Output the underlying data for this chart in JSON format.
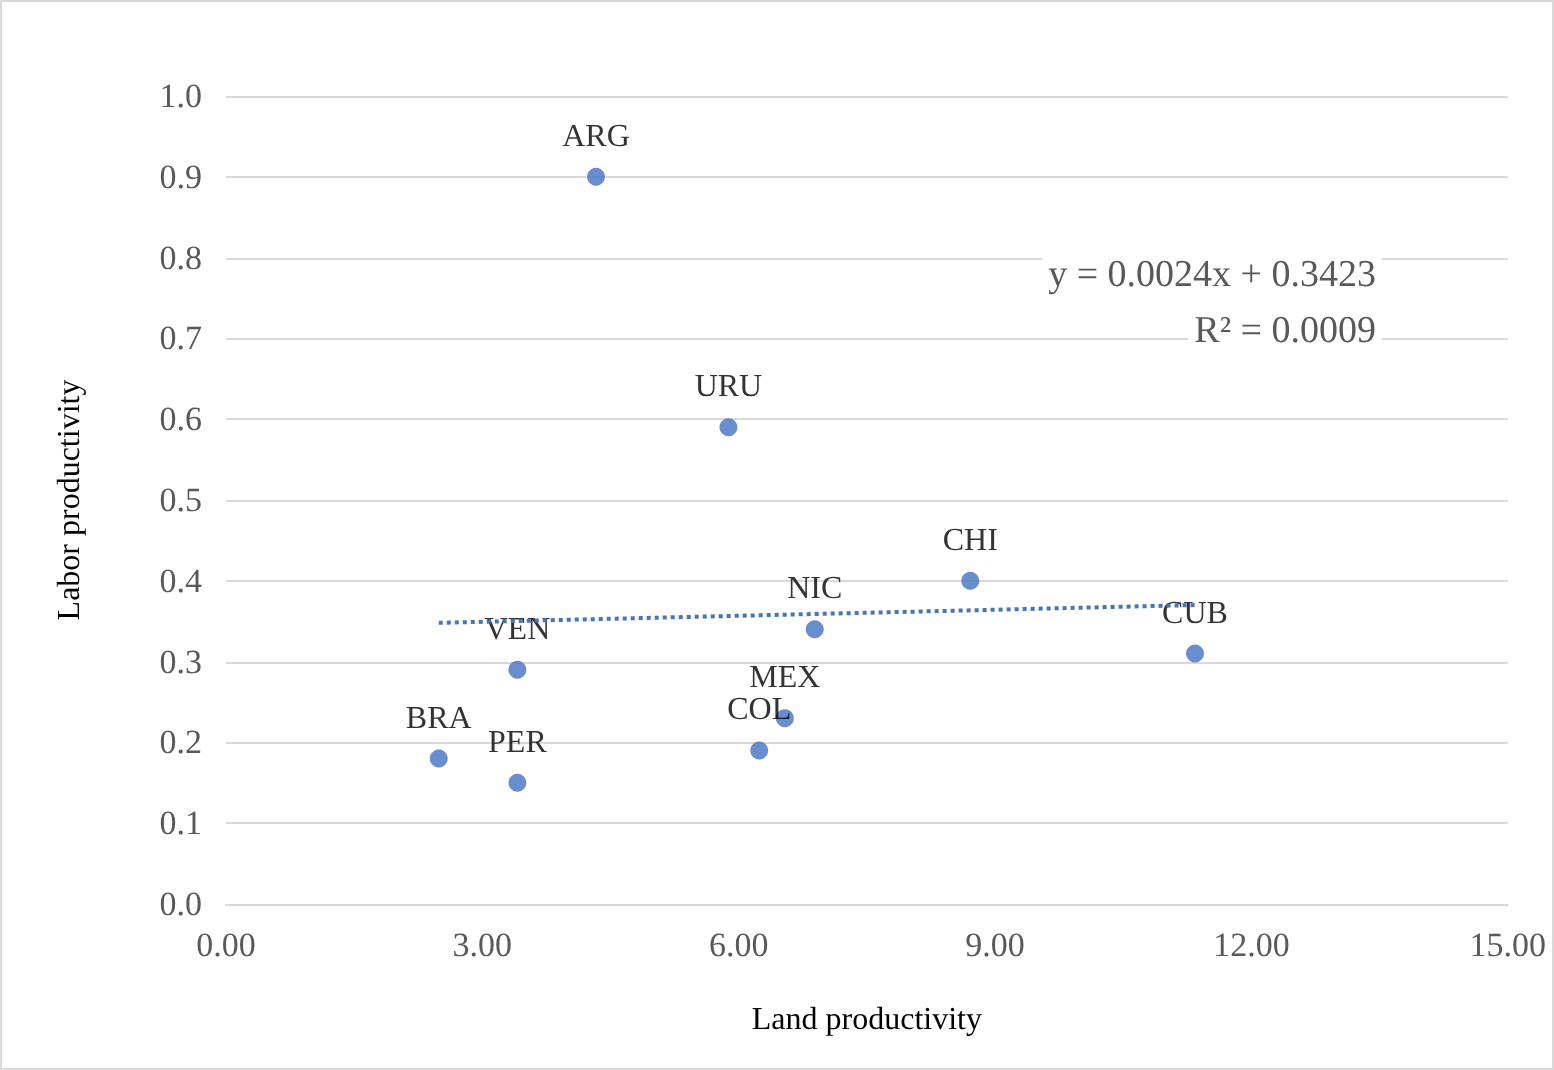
{
  "chart_data": {
    "type": "scatter",
    "xlabel": "Land productivity",
    "ylabel": "Labor productivity",
    "x": [
      4.33,
      5.88,
      8.71,
      6.89,
      11.34,
      3.41,
      6.54,
      6.24,
      2.49,
      3.41
    ],
    "series": [
      {
        "color": "#4472c4",
        "values": [
          0.9,
          0.59,
          0.4,
          0.34,
          0.31,
          0.29,
          0.23,
          0.19,
          0.18,
          0.15
        ]
      },
      {
        "type": "line",
        "color": "#4472c4",
        "line_style": "dotted",
        "marker": "none",
        "x": [
          2.49,
          11.34
        ],
        "values": [
          0.348,
          0.37
        ]
      }
    ],
    "marker": "circle",
    "xlim": [
      0,
      15
    ],
    "xticks": [
      {
        "value": 0,
        "label": "0.00"
      },
      {
        "value": 3,
        "label": "3.00"
      },
      {
        "value": 6,
        "label": "6.00"
      },
      {
        "value": 9,
        "label": "9.00"
      },
      {
        "value": 12,
        "label": "12.00"
      },
      {
        "value": 15,
        "label": "15.00"
      }
    ],
    "ylim": [
      0,
      1
    ],
    "yticks": [
      {
        "value": 0,
        "label": "0.0"
      },
      {
        "value": 0.1,
        "label": "0.1"
      },
      {
        "value": 0.2,
        "label": "0.2"
      },
      {
        "value": 0.3,
        "label": "0.3"
      },
      {
        "value": 0.4,
        "label": "0.4"
      },
      {
        "value": 0.5,
        "label": "0.5"
      },
      {
        "value": 0.6,
        "label": "0.6"
      },
      {
        "value": 0.7,
        "label": "0.7"
      },
      {
        "value": 0.8,
        "label": "0.8"
      },
      {
        "value": 0.9,
        "label": "0.9"
      },
      {
        "value": 1,
        "label": "1.0"
      }
    ],
    "grid": "y",
    "annotations": [
      {
        "text": "ARG",
        "x": 4.33,
        "y": 0.9
      },
      {
        "text": "URU",
        "x": 5.88,
        "y": 0.59
      },
      {
        "text": "CHI",
        "x": 8.71,
        "y": 0.4
      },
      {
        "text": "NIC",
        "x": 6.89,
        "y": 0.34
      },
      {
        "text": "CUB",
        "x": 11.34,
        "y": 0.31
      },
      {
        "text": "VEN",
        "x": 3.41,
        "y": 0.29
      },
      {
        "text": "MEX",
        "x": 6.54,
        "y": 0.23
      },
      {
        "text": "COL",
        "x": 6.24,
        "y": 0.19
      },
      {
        "text": "BRA",
        "x": 2.49,
        "y": 0.18
      },
      {
        "text": "PER",
        "x": 3.41,
        "y": 0.15
      },
      "y = 0.0024x + 0.3423",
      "R² = 0.0009"
    ]
  }
}
